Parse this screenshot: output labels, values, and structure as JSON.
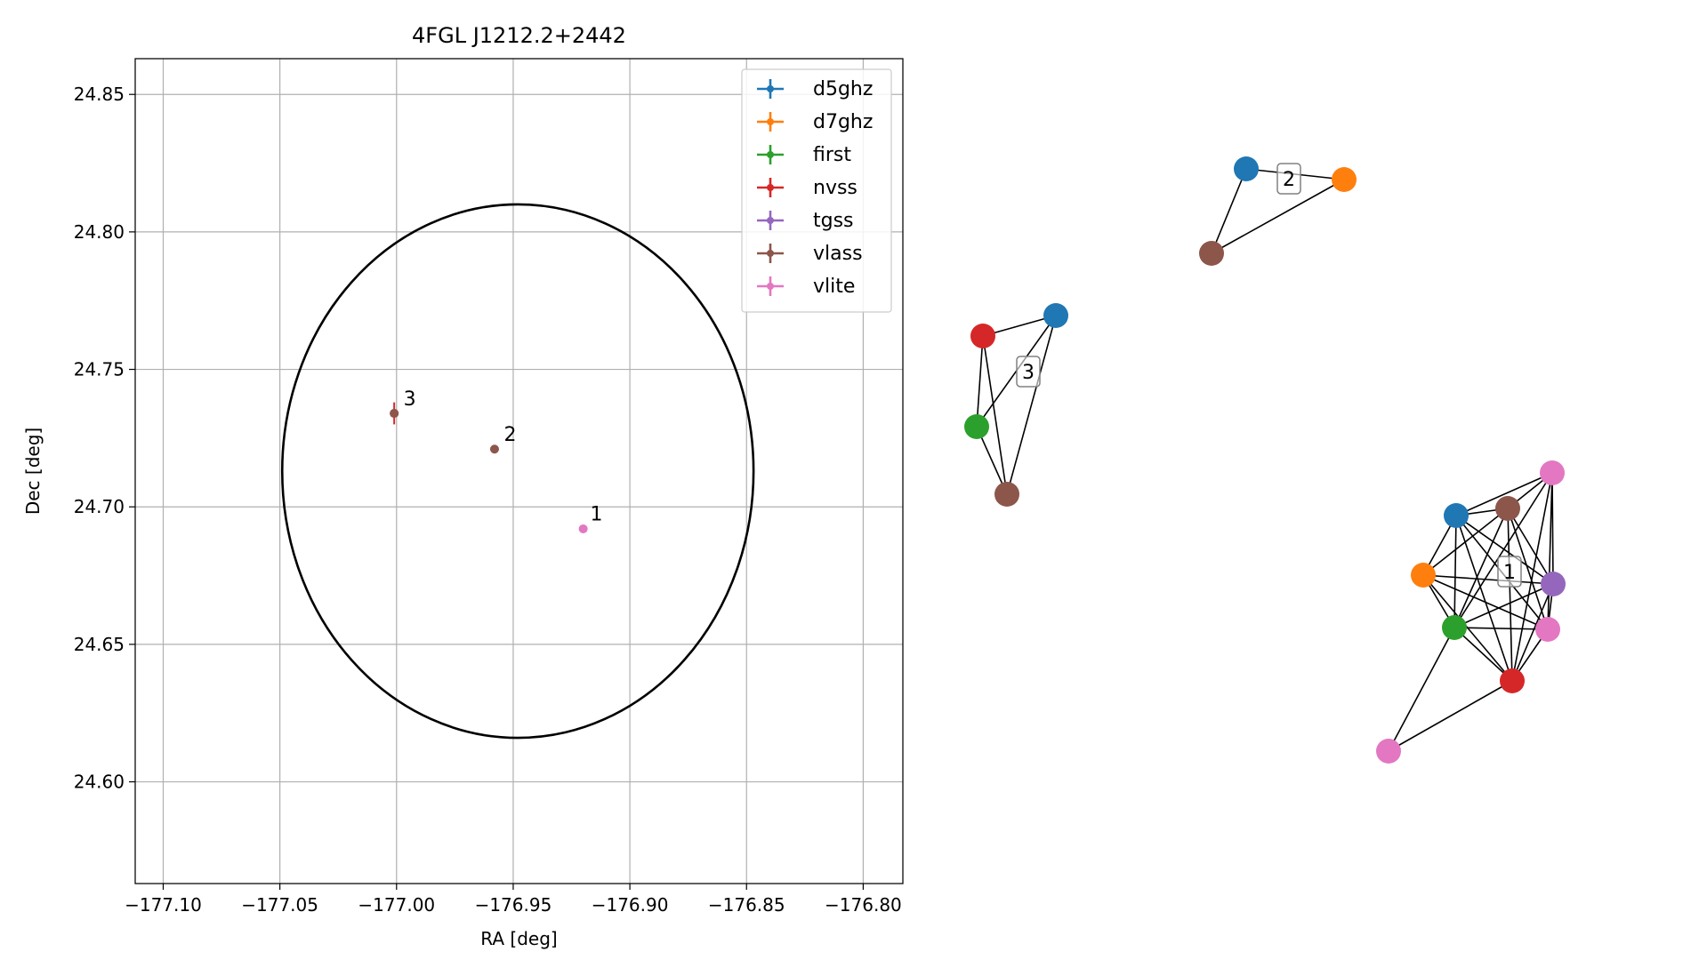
{
  "chart_data": [
    {
      "type": "scatter",
      "title": "4FGL J1212.2+2442",
      "xlabel": "RA [deg]",
      "ylabel": "Dec [deg]",
      "xlim": [
        -177.112,
        -176.783
      ],
      "ylim": [
        24.563,
        24.863
      ],
      "grid": true,
      "legend_position": "upper right",
      "xticks": [
        -177.1,
        -177.05,
        -177.0,
        -176.95,
        -176.9,
        -176.85,
        -176.8
      ],
      "xtick_labels": [
        "−177.10",
        "−177.05",
        "−177.00",
        "−176.95",
        "−176.90",
        "−176.85",
        "−176.80"
      ],
      "yticks": [
        24.6,
        24.65,
        24.7,
        24.75,
        24.8,
        24.85
      ],
      "ytick_labels": [
        "24.60",
        "24.65",
        "24.70",
        "24.75",
        "24.80",
        "24.85"
      ],
      "series": [
        {
          "name": "d5ghz",
          "color": "#1f77b4",
          "points": []
        },
        {
          "name": "d7ghz",
          "color": "#ff7f0e",
          "points": []
        },
        {
          "name": "first",
          "color": "#2ca02c",
          "points": []
        },
        {
          "name": "nvss",
          "color": "#d62728",
          "points": [
            {
              "x": -177.001,
              "y": 24.734,
              "yerr": 0.004
            }
          ]
        },
        {
          "name": "tgss",
          "color": "#9467bd",
          "points": []
        },
        {
          "name": "vlass",
          "color": "#8c564b",
          "points": [
            {
              "x": -177.001,
              "y": 24.734
            },
            {
              "x": -176.958,
              "y": 24.721
            }
          ]
        },
        {
          "name": "vlite",
          "color": "#e377c2",
          "points": [
            {
              "x": -176.92,
              "y": 24.692
            }
          ]
        }
      ],
      "annotations": [
        {
          "text": "1",
          "x": -176.917,
          "y": 24.695
        },
        {
          "text": "2",
          "x": -176.954,
          "y": 24.724
        },
        {
          "text": "3",
          "x": -176.997,
          "y": 24.737
        }
      ],
      "ellipse": {
        "center": [
          -176.948,
          24.713
        ],
        "ra_semi_axis": 0.101,
        "dec_semi_axis": 0.097,
        "color": "#000000"
      }
    },
    {
      "type": "network",
      "clusters": [
        {
          "label": "1",
          "nodes": [
            "d5ghz",
            "vlass",
            "vlite",
            "d7ghz",
            "tgss",
            "first",
            "vlite",
            "nvss",
            "vlite"
          ]
        },
        {
          "label": "2",
          "nodes": [
            "d5ghz",
            "d7ghz",
            "vlass"
          ]
        },
        {
          "label": "3",
          "nodes": [
            "nvss",
            "d5ghz",
            "first",
            "vlass"
          ]
        }
      ]
    }
  ]
}
